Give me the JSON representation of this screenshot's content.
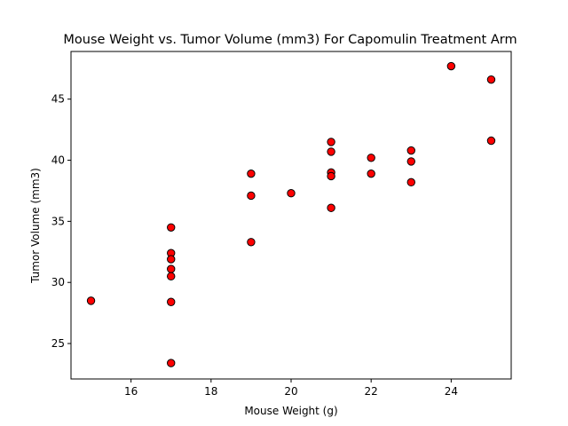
{
  "chart_data": {
    "type": "scatter",
    "title": "Mouse Weight vs. Tumor Volume (mm3) For Capomulin Treatment Arm",
    "xlabel": "Mouse Weight (g)",
    "ylabel": "Tumor Volume (mm3)",
    "xlim": [
      14.5,
      25.5
    ],
    "ylim": [
      22.1,
      48.9
    ],
    "xticks": [
      16,
      18,
      20,
      22,
      24
    ],
    "yticks": [
      25,
      30,
      35,
      40,
      45
    ],
    "grid": false,
    "marker": {
      "face_color": "#ff0000",
      "edge_color": "#000000"
    },
    "points": [
      {
        "x": 15,
        "y": 28.5
      },
      {
        "x": 17,
        "y": 34.5
      },
      {
        "x": 17,
        "y": 32.4
      },
      {
        "x": 17,
        "y": 31.9
      },
      {
        "x": 17,
        "y": 31.1
      },
      {
        "x": 17,
        "y": 30.5
      },
      {
        "x": 17,
        "y": 28.4
      },
      {
        "x": 17,
        "y": 23.4
      },
      {
        "x": 19,
        "y": 38.9
      },
      {
        "x": 19,
        "y": 37.1
      },
      {
        "x": 19,
        "y": 33.3
      },
      {
        "x": 20,
        "y": 37.3
      },
      {
        "x": 21,
        "y": 41.5
      },
      {
        "x": 21,
        "y": 40.7
      },
      {
        "x": 21,
        "y": 39.0
      },
      {
        "x": 21,
        "y": 38.7
      },
      {
        "x": 21,
        "y": 36.1
      },
      {
        "x": 22,
        "y": 40.2
      },
      {
        "x": 22,
        "y": 38.9
      },
      {
        "x": 23,
        "y": 40.8
      },
      {
        "x": 23,
        "y": 39.9
      },
      {
        "x": 23,
        "y": 38.2
      },
      {
        "x": 24,
        "y": 47.7
      },
      {
        "x": 25,
        "y": 46.6
      },
      {
        "x": 25,
        "y": 41.6
      }
    ]
  }
}
